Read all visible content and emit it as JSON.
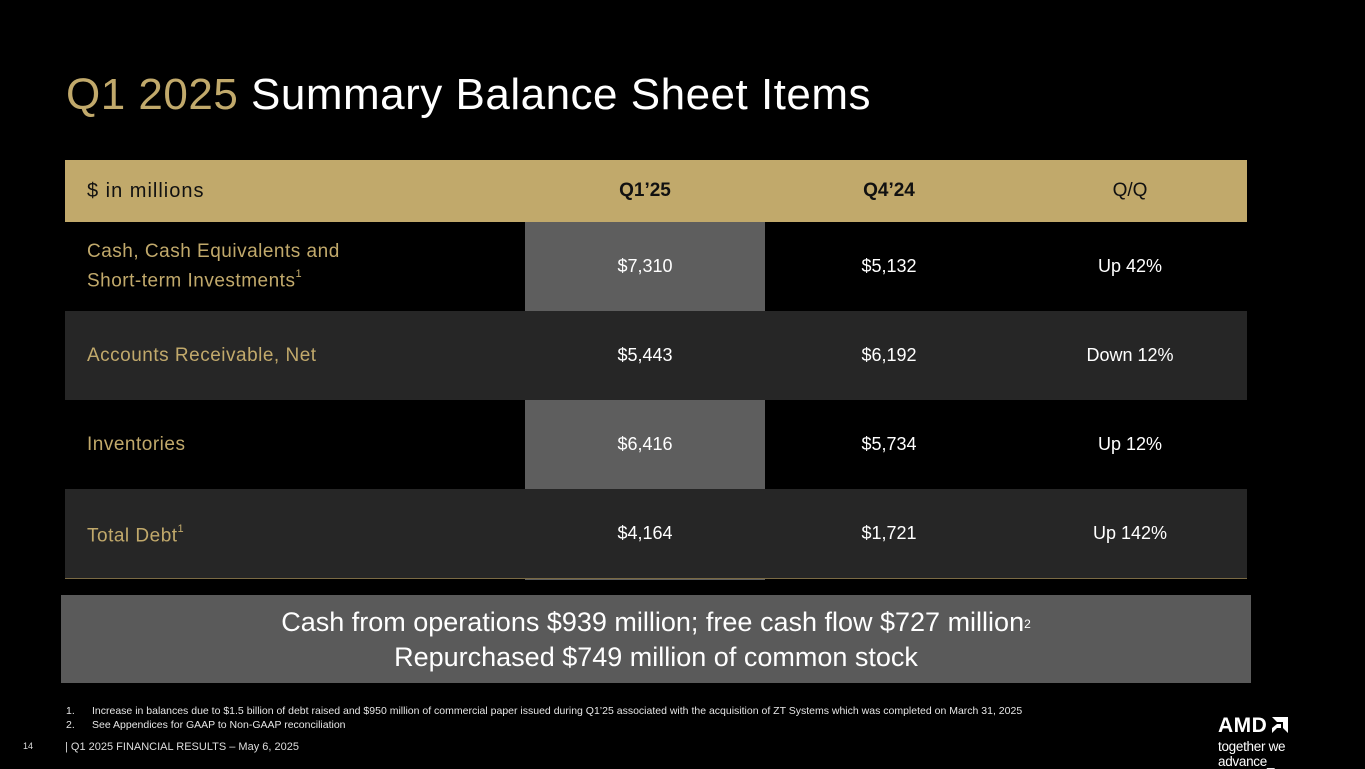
{
  "title": {
    "highlight": "Q1 2025",
    "rest": "Summary Balance Sheet Items"
  },
  "table": {
    "headers": {
      "label": "$ in millions",
      "q1": "Q1’25",
      "q4": "Q4’24",
      "qq": "Q/Q"
    },
    "rows": [
      {
        "label_line1": "Cash, Cash Equivalents and",
        "label_line2": "Short-term Investments",
        "footnote": "1",
        "q1": "$7,310",
        "q4": "$5,132",
        "qq": "Up 42%"
      },
      {
        "label": "Accounts Receivable, Net",
        "q1": "$5,443",
        "q4": "$6,192",
        "qq": "Down 12%"
      },
      {
        "label": "Inventories",
        "q1": "$6,416",
        "q4": "$5,734",
        "qq": "Up 12%"
      },
      {
        "label": "Total Debt",
        "footnote": "1",
        "q1": "$4,164",
        "q4": "$1,721",
        "qq": "Up 142%"
      }
    ]
  },
  "callout": {
    "line1": "Cash from operations $939 million; free cash flow $727 million",
    "line1_footnote": "2",
    "line2": "Repurchased $749 million of common stock"
  },
  "footnotes": [
    {
      "num": "1.",
      "text": "Increase in balances due to $1.5 billion of debt raised and $950 million of commercial paper issued during Q1’25 associated with the acquisition of ZT Systems which was completed on March 31, 2025"
    },
    {
      "num": "2.",
      "text": "See Appendices for GAAP to Non-GAAP reconciliation"
    }
  ],
  "footer": {
    "page_number": "14",
    "text": "|   Q1 2025 FINANCIAL RESULTS – May 6, 2025"
  },
  "logo": {
    "wordmark": "AMD",
    "tagline": "together we advance_"
  },
  "colors": {
    "gold": "#c1a96b",
    "band": "#5e5e5e",
    "alt_row": "#262626",
    "callout": "#5a5a5a"
  }
}
